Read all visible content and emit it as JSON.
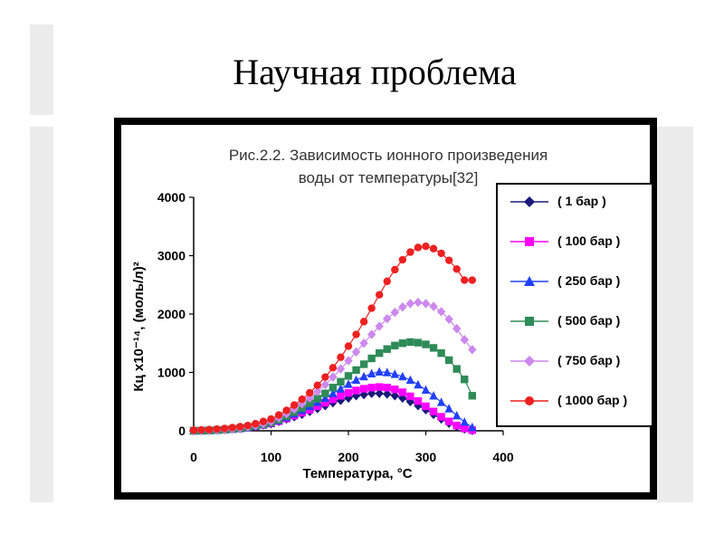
{
  "slide": {
    "title": "Научная проблема"
  },
  "chart_data": {
    "type": "line",
    "title_lines": [
      "Рис.2.2. Зависимость  ионного произведения",
      "воды от температуры[32]"
    ],
    "xlabel": "Температура, °C",
    "ylabel": "Кц х10⁻¹⁴, (моль/л)²",
    "xlim": [
      0,
      400
    ],
    "ylim": [
      0,
      4000
    ],
    "x_ticks": [
      0,
      100,
      200,
      300,
      400
    ],
    "y_ticks": [
      0,
      1000,
      2000,
      3000,
      4000
    ],
    "grid": false,
    "legend_position": "right",
    "series": [
      {
        "name": "( 1 бар )",
        "color": "#1a1a7a",
        "marker": "diamond",
        "x": [
          0,
          10,
          20,
          30,
          40,
          50,
          60,
          70,
          80,
          90,
          100,
          110,
          120,
          130,
          140,
          150,
          160,
          170,
          180,
          190,
          200,
          210,
          220,
          230,
          240,
          250,
          260,
          270,
          280,
          290,
          300,
          310,
          320,
          330,
          340,
          350,
          360
        ],
        "y": [
          1,
          2,
          5,
          10,
          18,
          30,
          40,
          60,
          75,
          100,
          120,
          160,
          200,
          240,
          280,
          330,
          380,
          430,
          480,
          520,
          560,
          600,
          620,
          640,
          640,
          630,
          600,
          560,
          500,
          430,
          360,
          280,
          200,
          130,
          70,
          30,
          5
        ]
      },
      {
        "name": "( 100 бар )",
        "color": "#ff00ff",
        "marker": "square",
        "x": [
          0,
          10,
          20,
          30,
          40,
          50,
          60,
          70,
          80,
          90,
          100,
          110,
          120,
          130,
          140,
          150,
          160,
          170,
          180,
          190,
          200,
          210,
          220,
          230,
          240,
          250,
          260,
          270,
          280,
          290,
          300,
          310,
          320,
          330,
          340,
          350,
          360
        ],
        "y": [
          1,
          2,
          5,
          10,
          18,
          30,
          40,
          60,
          75,
          100,
          125,
          165,
          210,
          260,
          310,
          360,
          420,
          480,
          540,
          600,
          650,
          690,
          720,
          740,
          750,
          740,
          710,
          660,
          590,
          510,
          420,
          330,
          240,
          160,
          90,
          40,
          10
        ]
      },
      {
        "name": "( 250 бар )",
        "color": "#2040ff",
        "marker": "triangle",
        "x": [
          0,
          10,
          20,
          30,
          40,
          50,
          60,
          70,
          80,
          90,
          100,
          110,
          120,
          130,
          140,
          150,
          160,
          170,
          180,
          190,
          200,
          210,
          220,
          230,
          240,
          250,
          260,
          270,
          280,
          290,
          300,
          310,
          320,
          330,
          340,
          350,
          360
        ],
        "y": [
          1,
          2,
          5,
          10,
          18,
          30,
          40,
          60,
          80,
          105,
          135,
          180,
          230,
          290,
          350,
          420,
          490,
          560,
          640,
          720,
          800,
          870,
          930,
          980,
          1010,
          1000,
          970,
          930,
          870,
          790,
          700,
          600,
          490,
          380,
          260,
          150,
          60
        ]
      },
      {
        "name": "( 500 бар )",
        "color": "#2e8b57",
        "marker": "square",
        "x": [
          0,
          10,
          20,
          30,
          40,
          50,
          60,
          70,
          80,
          90,
          100,
          110,
          120,
          130,
          140,
          150,
          160,
          170,
          180,
          190,
          200,
          210,
          220,
          230,
          240,
          250,
          260,
          270,
          280,
          290,
          300,
          310,
          320,
          330,
          340,
          350,
          360
        ],
        "y": [
          1,
          2,
          5,
          10,
          18,
          30,
          45,
          65,
          85,
          110,
          140,
          190,
          250,
          320,
          390,
          470,
          550,
          640,
          740,
          840,
          940,
          1040,
          1140,
          1240,
          1330,
          1400,
          1460,
          1500,
          1520,
          1510,
          1480,
          1420,
          1330,
          1210,
          1060,
          880,
          600
        ]
      },
      {
        "name": "( 750 бар )",
        "color": "#cc88ee",
        "marker": "diamond",
        "x": [
          0,
          10,
          20,
          30,
          40,
          50,
          60,
          70,
          80,
          90,
          100,
          110,
          120,
          130,
          140,
          150,
          160,
          170,
          180,
          190,
          200,
          210,
          220,
          230,
          240,
          250,
          260,
          270,
          280,
          290,
          300,
          310,
          320,
          330,
          340,
          350,
          360
        ],
        "y": [
          1,
          2,
          5,
          10,
          18,
          30,
          45,
          65,
          90,
          120,
          160,
          220,
          290,
          370,
          460,
          560,
          670,
          790,
          920,
          1060,
          1200,
          1350,
          1500,
          1650,
          1790,
          1920,
          2030,
          2120,
          2180,
          2200,
          2180,
          2130,
          2040,
          1910,
          1750,
          1560,
          1390
        ]
      },
      {
        "name": "( 1000 бар )",
        "color": "#ee2020",
        "marker": "circle",
        "x": [
          0,
          10,
          20,
          30,
          40,
          50,
          60,
          70,
          80,
          90,
          100,
          110,
          120,
          130,
          140,
          150,
          160,
          170,
          180,
          190,
          200,
          210,
          220,
          230,
          240,
          250,
          260,
          270,
          280,
          290,
          300,
          310,
          320,
          330,
          340,
          350,
          360
        ],
        "y": [
          10,
          15,
          20,
          30,
          40,
          55,
          70,
          90,
          120,
          160,
          200,
          270,
          350,
          440,
          540,
          650,
          780,
          920,
          1080,
          1260,
          1450,
          1650,
          1870,
          2100,
          2330,
          2560,
          2760,
          2930,
          3060,
          3140,
          3160,
          3120,
          3040,
          2920,
          2770,
          2580,
          2580
        ]
      }
    ]
  },
  "colors": {
    "frame": "#000000",
    "axis": "#000000",
    "deco": "#ececec"
  }
}
